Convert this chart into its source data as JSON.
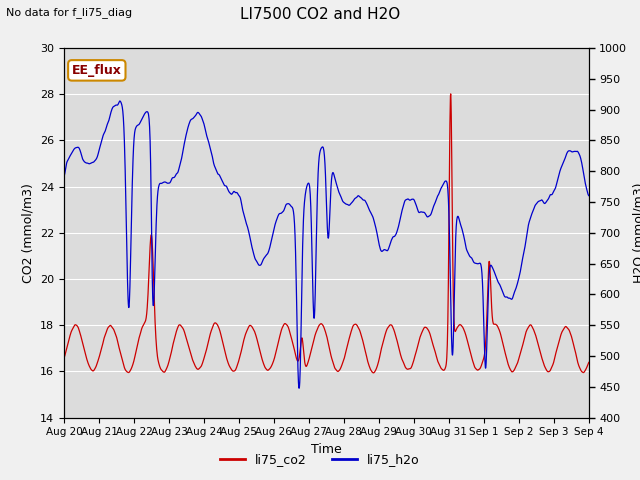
{
  "title": "LI7500 CO2 and H2O",
  "suptitle": "No data for f_li75_diag",
  "xlabel": "Time",
  "ylabel_left": "CO2 (mmol/m3)",
  "ylabel_right": "H2O (mmol/m3)",
  "ylim_left": [
    14,
    30
  ],
  "ylim_right": [
    400,
    1000
  ],
  "yticks_left": [
    14,
    16,
    18,
    20,
    22,
    24,
    26,
    28,
    30
  ],
  "yticks_right": [
    400,
    450,
    500,
    550,
    600,
    650,
    700,
    750,
    800,
    850,
    900,
    950,
    1000
  ],
  "xtick_labels": [
    "Aug 20",
    "Aug 21",
    "Aug 22",
    "Aug 23",
    "Aug 24",
    "Aug 25",
    "Aug 26",
    "Aug 27",
    "Aug 28",
    "Aug 29",
    "Aug 30",
    "Aug 31",
    "Sep 1",
    "Sep 2",
    "Sep 3",
    "Sep 4"
  ],
  "annotation_text": "EE_flux",
  "co2_color": "#cc0000",
  "h2o_color": "#0000cc",
  "plot_bg": "#dcdcdc",
  "fig_bg": "#f0f0f0",
  "grid_color": "#ffffff",
  "legend_labels": [
    "li75_co2",
    "li75_h2o"
  ],
  "figsize": [
    6.4,
    4.8
  ],
  "dpi": 100
}
